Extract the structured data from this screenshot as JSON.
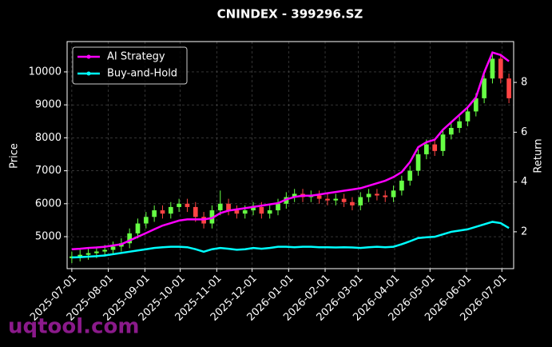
{
  "chart_data": {
    "type": "candlestick",
    "title": "CNINDEX - 399296.SZ",
    "y_label": "Price",
    "y2_label": "Return",
    "watermark": "uqtool.com",
    "x": [
      "2025-07-01",
      "2025-07-08",
      "2025-07-15",
      "2025-07-22",
      "2025-07-29",
      "2025-08-05",
      "2025-08-12",
      "2025-08-19",
      "2025-08-26",
      "2025-09-02",
      "2025-09-09",
      "2025-09-16",
      "2025-09-23",
      "2025-09-30",
      "2025-10-07",
      "2025-10-14",
      "2025-10-21",
      "2025-10-28",
      "2025-11-04",
      "2025-11-11",
      "2025-11-18",
      "2025-11-25",
      "2025-12-02",
      "2025-12-09",
      "2025-12-16",
      "2025-12-23",
      "2025-12-30",
      "2026-01-06",
      "2026-01-13",
      "2026-01-20",
      "2026-01-27",
      "2026-02-03",
      "2026-02-10",
      "2026-02-17",
      "2026-02-24",
      "2026-03-03",
      "2026-03-10",
      "2026-03-17",
      "2026-03-24",
      "2026-03-31",
      "2026-04-07",
      "2026-04-14",
      "2026-04-21",
      "2026-04-28",
      "2026-05-05",
      "2026-05-12",
      "2026-05-19",
      "2026-05-26",
      "2026-06-02",
      "2026-06-09",
      "2026-06-16",
      "2026-06-23",
      "2026-06-30",
      "2026-07-07"
    ],
    "open": [
      4350,
      4400,
      4450,
      4500,
      4550,
      4600,
      4700,
      4800,
      5100,
      5400,
      5600,
      5800,
      5700,
      5900,
      6000,
      5900,
      5600,
      5400,
      5800,
      6000,
      5800,
      5700,
      5800,
      5900,
      5700,
      5800,
      6000,
      6200,
      6300,
      6200,
      6250,
      6150,
      6100,
      6150,
      6050,
      5950,
      6200,
      6300,
      6250,
      6200,
      6400,
      6700,
      7000,
      7500,
      7800,
      7600,
      8100,
      8300,
      8500,
      8800,
      9200,
      9800,
      10400,
      9800
    ],
    "high": [
      4550,
      4600,
      4650,
      4700,
      4750,
      4850,
      4950,
      5250,
      5550,
      5750,
      5950,
      5950,
      6050,
      6150,
      6150,
      6050,
      5750,
      5950,
      6400,
      6150,
      5950,
      5950,
      6050,
      6050,
      5950,
      6150,
      6350,
      6450,
      6450,
      6400,
      6400,
      6300,
      6300,
      6300,
      6200,
      6350,
      6450,
      6450,
      6400,
      6550,
      6850,
      7150,
      7650,
      7950,
      7950,
      8250,
      8450,
      8650,
      8950,
      9350,
      9950,
      10600,
      10550,
      9950
    ],
    "low": [
      4200,
      4250,
      4300,
      4350,
      4400,
      4450,
      4550,
      4650,
      4950,
      5250,
      5450,
      5550,
      5550,
      5750,
      5750,
      5450,
      5250,
      5250,
      5650,
      5650,
      5550,
      5550,
      5650,
      5550,
      5550,
      5650,
      5850,
      6050,
      6050,
      6050,
      6000,
      5950,
      5950,
      5900,
      5800,
      5800,
      6050,
      6100,
      6050,
      6050,
      6250,
      6550,
      6850,
      7350,
      7450,
      7450,
      7950,
      8150,
      8350,
      8650,
      9050,
      9650,
      9650,
      9050
    ],
    "close": [
      4400,
      4450,
      4500,
      4550,
      4600,
      4700,
      4800,
      5100,
      5400,
      5600,
      5800,
      5700,
      5900,
      6000,
      5900,
      5600,
      5400,
      5800,
      6000,
      5800,
      5700,
      5800,
      5900,
      5700,
      5800,
      6000,
      6200,
      6300,
      6200,
      6250,
      6150,
      6100,
      6150,
      6050,
      5950,
      6200,
      6300,
      6250,
      6200,
      6400,
      6700,
      7000,
      7500,
      7800,
      7600,
      8100,
      8300,
      8500,
      8800,
      9200,
      9800,
      10400,
      9800,
      9200
    ],
    "up_color": "#66ff44",
    "down_color": "#ff4444",
    "series": [
      {
        "name": "AI Strategy",
        "color": "#ff00ff",
        "axis": "y2",
        "values": [
          1.3,
          1.32,
          1.35,
          1.37,
          1.4,
          1.45,
          1.5,
          1.65,
          1.8,
          1.95,
          2.1,
          2.25,
          2.35,
          2.45,
          2.5,
          2.5,
          2.5,
          2.55,
          2.75,
          2.85,
          2.9,
          2.95,
          3.0,
          3.05,
          3.1,
          3.15,
          3.3,
          3.4,
          3.45,
          3.45,
          3.5,
          3.55,
          3.6,
          3.65,
          3.7,
          3.75,
          3.85,
          3.95,
          4.05,
          4.2,
          4.4,
          4.8,
          5.4,
          5.6,
          5.7,
          6.1,
          6.4,
          6.7,
          7.0,
          7.4,
          8.4,
          9.2,
          9.1,
          8.85
        ]
      },
      {
        "name": "Buy-and-Hold",
        "color": "#00ffff",
        "axis": "y2",
        "values": [
          0.97,
          0.98,
          1.0,
          1.02,
          1.05,
          1.1,
          1.15,
          1.2,
          1.25,
          1.3,
          1.35,
          1.38,
          1.4,
          1.4,
          1.38,
          1.3,
          1.2,
          1.3,
          1.35,
          1.32,
          1.28,
          1.3,
          1.35,
          1.32,
          1.35,
          1.4,
          1.4,
          1.38,
          1.4,
          1.4,
          1.38,
          1.38,
          1.37,
          1.38,
          1.37,
          1.35,
          1.38,
          1.4,
          1.38,
          1.4,
          1.5,
          1.62,
          1.75,
          1.78,
          1.8,
          1.9,
          2.0,
          2.05,
          2.1,
          2.2,
          2.3,
          2.4,
          2.35,
          2.15
        ]
      }
    ],
    "xlim": [
      "2025-06-27",
      "2026-07-11"
    ],
    "xticks": [
      "2025-07-01",
      "2025-08-01",
      "2025-09-01",
      "2025-10-01",
      "2025-11-01",
      "2025-12-01",
      "2026-01-01",
      "2026-02-01",
      "2026-03-01",
      "2026-04-01",
      "2026-05-01",
      "2026-06-01",
      "2026-07-01"
    ],
    "ylim": [
      4030,
      10920
    ],
    "yticks": [
      5000,
      6000,
      7000,
      8000,
      9000,
      10000
    ],
    "y2lim": [
      0.52,
      9.64
    ],
    "y2ticks": [
      2,
      4,
      6,
      8
    ],
    "grid": true,
    "legend": "upper left"
  }
}
